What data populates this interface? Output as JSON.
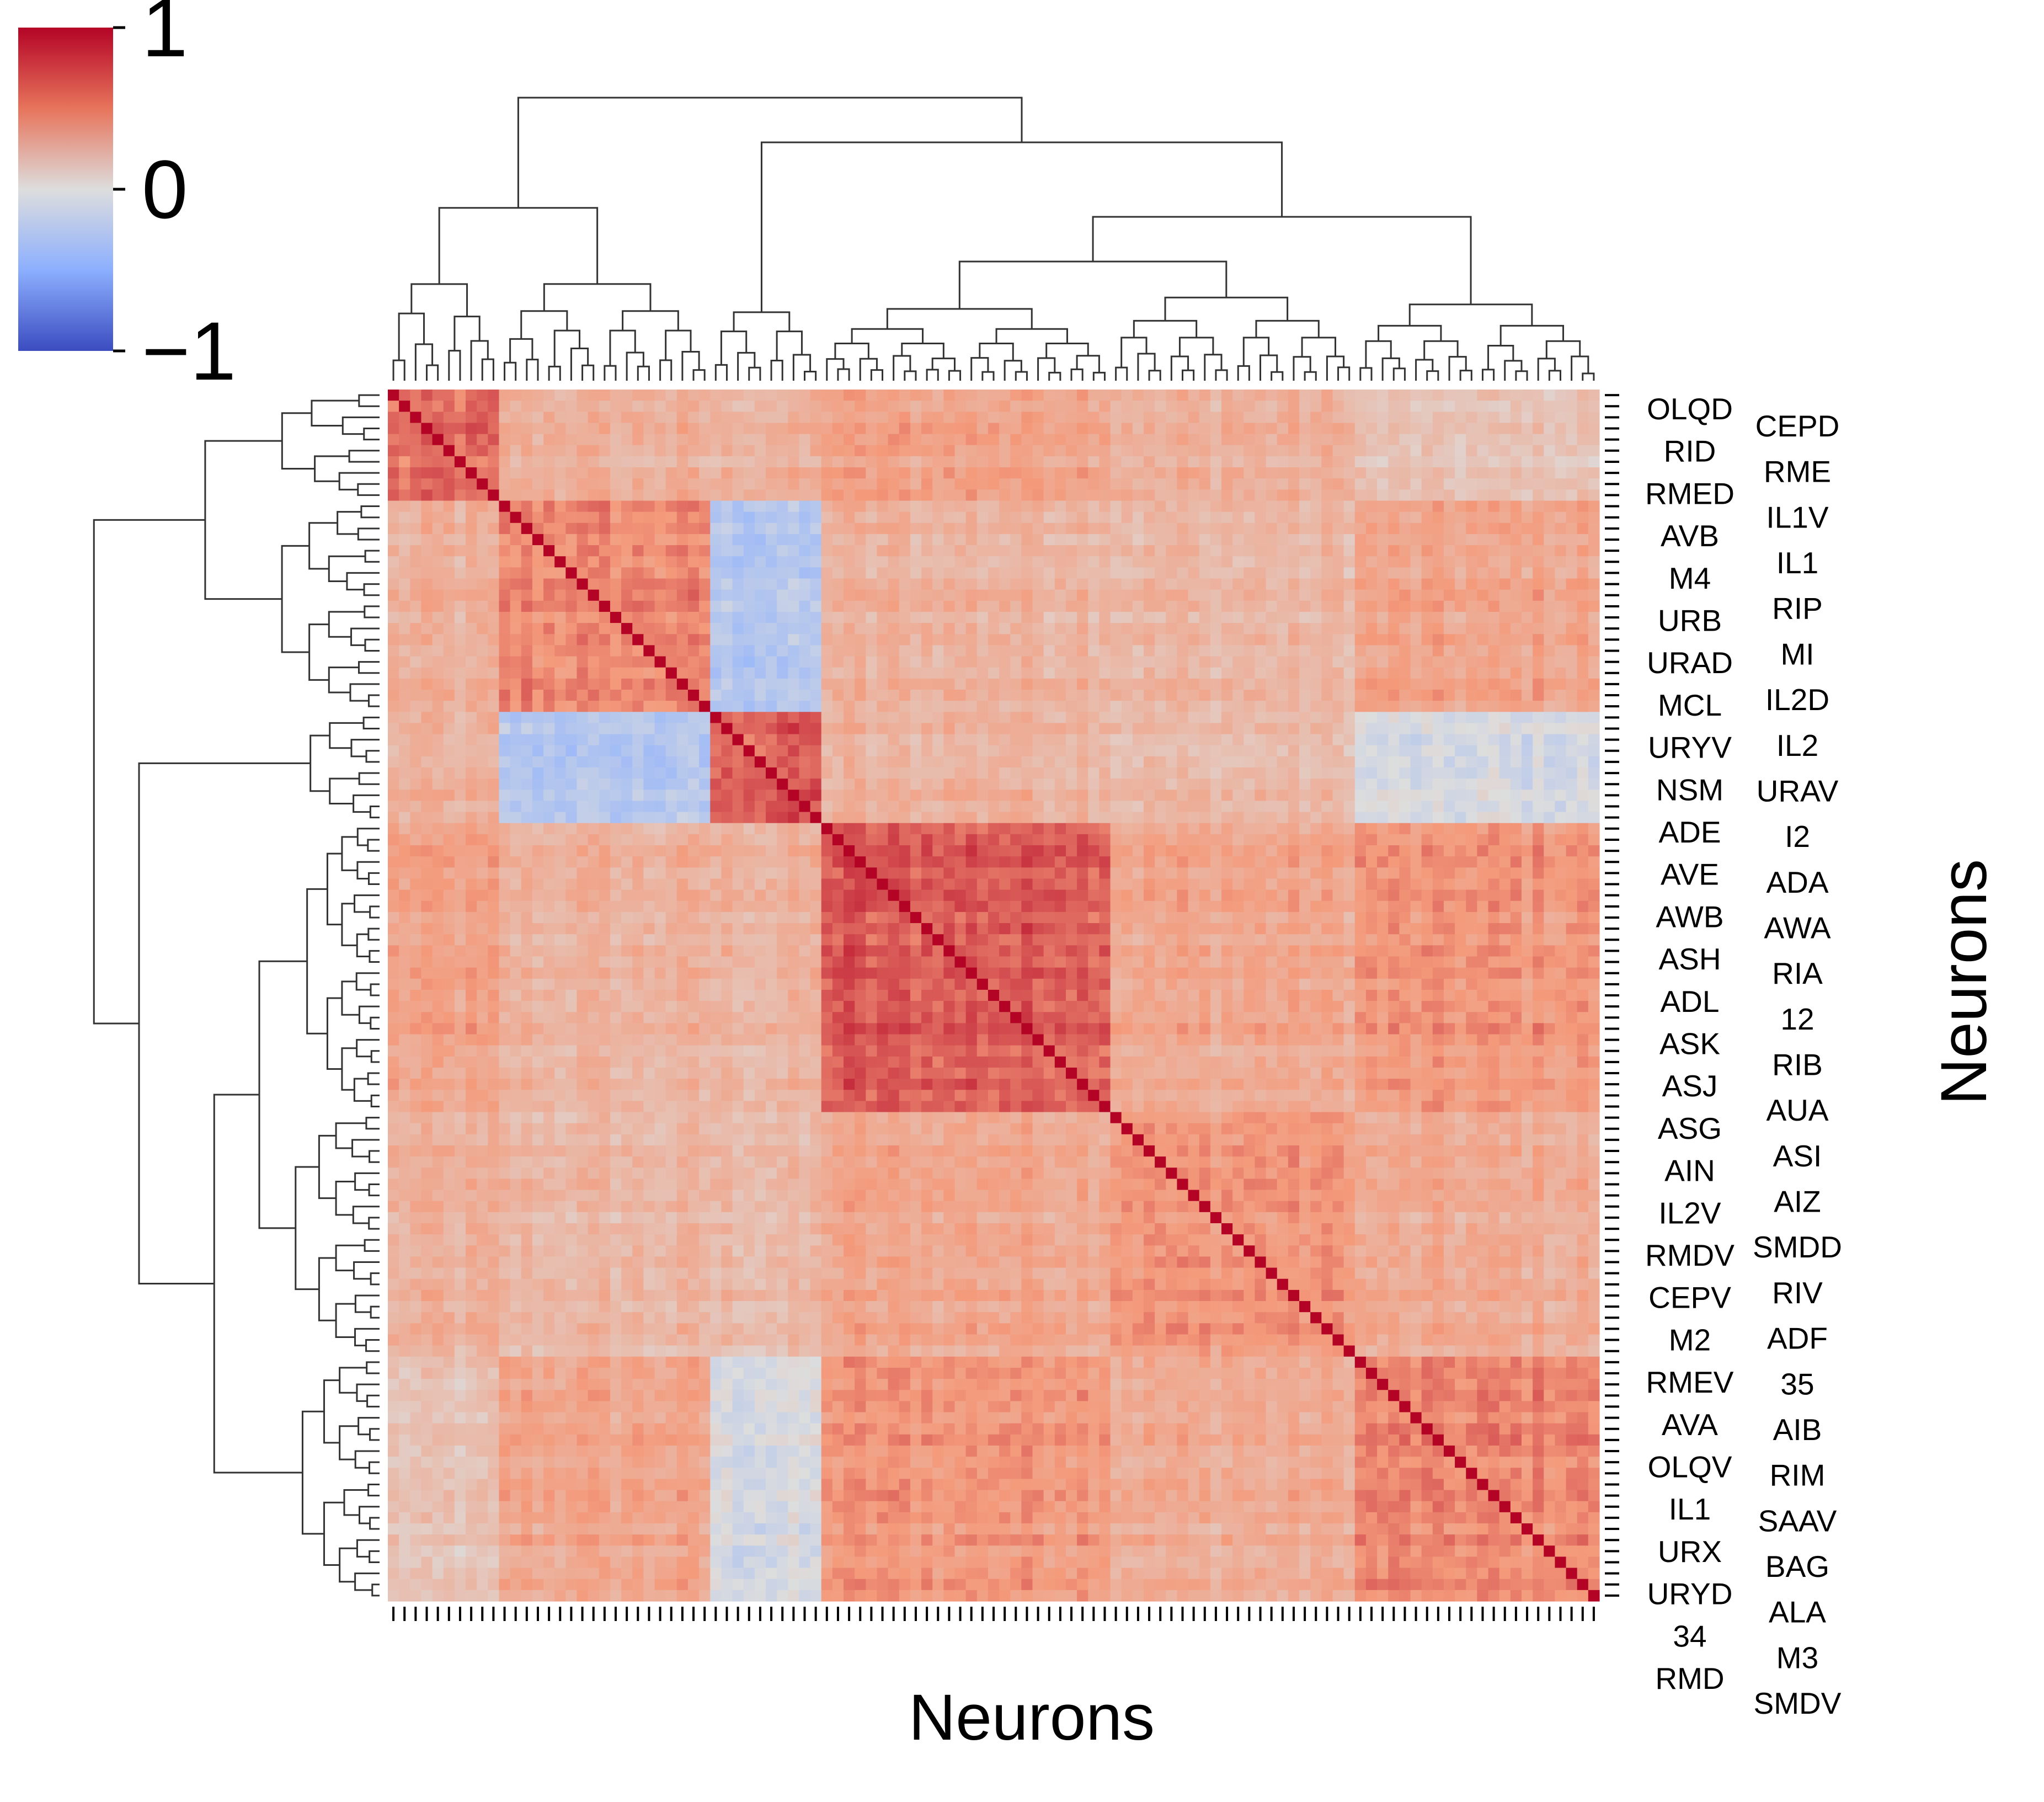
{
  "chart_data": {
    "type": "heatmap",
    "subtype": "clustered-correlation-matrix",
    "xlabel": "Neurons",
    "ylabel": "Neurons",
    "n": 109,
    "colorbar": {
      "colormap": "coolwarm",
      "range": [
        -1,
        1
      ],
      "ticks": [
        1,
        0,
        -1
      ],
      "tick_labels": [
        "1",
        "0",
        "−1"
      ],
      "colors": {
        "low": "#3b4cc0",
        "mid": "#dddddd",
        "high": "#b40426"
      }
    },
    "clusters": [
      {
        "size": 10,
        "sign": 1
      },
      {
        "size": 19,
        "sign": 1
      },
      {
        "size": 10,
        "sign": 1
      },
      {
        "size": 26,
        "sign": 1
      },
      {
        "size": 22,
        "sign": 1
      },
      {
        "size": 22,
        "sign": 1
      }
    ],
    "block_correlations": [
      [
        0.62,
        0.32,
        0.3,
        0.42,
        0.32,
        0.18
      ],
      [
        0.32,
        0.55,
        -0.25,
        0.32,
        0.28,
        0.4
      ],
      [
        0.3,
        -0.25,
        0.7,
        0.32,
        0.26,
        -0.05
      ],
      [
        0.42,
        0.32,
        0.32,
        0.72,
        0.4,
        0.5
      ],
      [
        0.32,
        0.28,
        0.26,
        0.4,
        0.5,
        0.36
      ],
      [
        0.18,
        0.4,
        -0.05,
        0.5,
        0.36,
        0.55
      ]
    ],
    "diagonal_value": 1.0,
    "row_label_columns": [
      [
        "OLQD",
        "RID",
        "RMED",
        "AVB",
        "M4",
        "URB",
        "URAD",
        "MCL",
        "URYV",
        "NSM",
        "ADE",
        "AVE",
        "AWB",
        "ASH",
        "ADL",
        "ASK",
        "ASJ",
        "ASG",
        "AIN",
        "IL2V",
        "RMDV",
        "CEPV",
        "M2",
        "RMEV",
        "AVA",
        "OLQV",
        "IL1",
        "URX",
        "URYD",
        "34",
        "RMD"
      ],
      [
        "CEPD",
        "RME",
        "IL1V",
        "IL1",
        "RIP",
        "MI",
        "IL2D",
        "IL2",
        "URAV",
        "I2",
        "ADA",
        "AWA",
        "RIA",
        "12",
        "RIB",
        "AUA",
        "ASI",
        "AIZ",
        "SMDD",
        "RIV",
        "ADF",
        "35",
        "AIB",
        "RIM",
        "SAAV",
        "BAG",
        "ALA",
        "M3",
        "SMDV"
      ]
    ]
  }
}
